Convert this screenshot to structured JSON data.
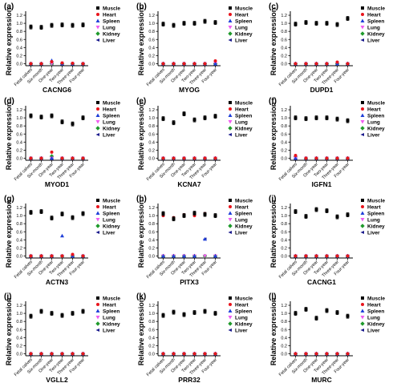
{
  "figure": {
    "panel_labels": [
      "(a)",
      "(b)",
      "(c)",
      "(d)",
      "(e)",
      "(f)",
      "(g)",
      "(h)",
      "(i)",
      "(j)",
      "(k)",
      "(l)"
    ],
    "ylabel": "Relative expression",
    "categories": [
      "Fetal calves",
      "Six-month",
      "One-year",
      "Two-year",
      "Three-year",
      "Four-year"
    ],
    "legend": [
      "Muscle",
      "Heart",
      "Spleen",
      "Lung",
      "Kidney",
      "Liver"
    ],
    "colors": {
      "Muscle": "#000000",
      "Heart": "#e8141c",
      "Spleen": "#1f3fd8",
      "Lung": "#f05cf0",
      "Kidney": "#1f9a2c",
      "Liver": "#1a1a8c"
    }
  },
  "chart_data": [
    {
      "type": "scatter",
      "panel": "(a)",
      "xlabel": "CACNG6",
      "ylabel": "Relative expression",
      "ylim": [
        -0.05,
        1.3
      ],
      "yticks": [
        0.0,
        0.2,
        0.4,
        0.6,
        0.8,
        1.0,
        1.2
      ],
      "categories": [
        "Fetal calves",
        "Six-month",
        "One-year",
        "Two-year",
        "Three-year",
        "Four-year"
      ],
      "series": [
        {
          "name": "Muscle",
          "values": [
            0.91,
            0.9,
            0.95,
            0.96,
            0.95,
            0.96
          ]
        },
        {
          "name": "Heart",
          "values": [
            0.0,
            0.0,
            0.05,
            0.02,
            0.01,
            0.0
          ]
        },
        {
          "name": "Spleen",
          "values": [
            0.0,
            0.0,
            0.08,
            0.0,
            0.0,
            0.0
          ]
        },
        {
          "name": "Lung",
          "values": [
            0.0,
            0.0,
            0.0,
            0.0,
            0.0,
            0.0
          ]
        },
        {
          "name": "Kidney",
          "values": [
            0.0,
            0.0,
            0.0,
            0.0,
            0.0,
            0.0
          ]
        },
        {
          "name": "Liver",
          "values": [
            0.0,
            0.0,
            0.0,
            0.0,
            0.0,
            0.0
          ]
        }
      ]
    },
    {
      "type": "scatter",
      "panel": "(b)",
      "xlabel": "MYOG",
      "ylabel": "Relative expression",
      "ylim": [
        -0.05,
        1.3
      ],
      "yticks": [
        0.0,
        0.2,
        0.4,
        0.6,
        0.8,
        1.0,
        1.2
      ],
      "categories": [
        "Fetal calves",
        "Six-month",
        "One-year",
        "Two-year",
        "Three-year",
        "Four-year"
      ],
      "series": [
        {
          "name": "Muscle",
          "values": [
            0.98,
            0.95,
            1.0,
            1.0,
            1.05,
            1.02
          ]
        },
        {
          "name": "Heart",
          "values": [
            0.0,
            0.0,
            0.0,
            0.0,
            0.0,
            0.07
          ]
        },
        {
          "name": "Spleen",
          "values": [
            0.0,
            0.0,
            0.0,
            0.0,
            0.0,
            0.0
          ]
        },
        {
          "name": "Lung",
          "values": [
            0.0,
            0.0,
            0.0,
            0.0,
            0.0,
            0.0
          ]
        },
        {
          "name": "Kidney",
          "values": [
            0.0,
            0.0,
            0.0,
            0.0,
            0.0,
            0.0
          ]
        },
        {
          "name": "Liver",
          "values": [
            0.0,
            0.0,
            0.0,
            0.0,
            0.0,
            0.0
          ]
        }
      ]
    },
    {
      "type": "scatter",
      "panel": "(c)",
      "xlabel": "DUPD1",
      "ylabel": "Relative expression",
      "ylim": [
        -0.05,
        1.3
      ],
      "yticks": [
        0.0,
        0.2,
        0.4,
        0.6,
        0.8,
        1.0,
        1.2
      ],
      "categories": [
        "Fetal calves",
        "Six-month",
        "One-year",
        "Two-year",
        "Three-year",
        "Four-year"
      ],
      "series": [
        {
          "name": "Muscle",
          "values": [
            0.98,
            1.02,
            1.0,
            1.0,
            0.97,
            1.12
          ]
        },
        {
          "name": "Heart",
          "values": [
            0.0,
            0.0,
            0.0,
            0.0,
            0.04,
            0.0
          ]
        },
        {
          "name": "Spleen",
          "values": [
            0.0,
            0.0,
            0.0,
            0.0,
            0.0,
            0.0
          ]
        },
        {
          "name": "Lung",
          "values": [
            0.0,
            0.0,
            0.0,
            0.0,
            0.0,
            0.0
          ]
        },
        {
          "name": "Kidney",
          "values": [
            0.0,
            0.0,
            0.0,
            0.0,
            0.0,
            0.0
          ]
        },
        {
          "name": "Liver",
          "values": [
            0.0,
            0.0,
            0.0,
            0.0,
            0.0,
            0.0
          ]
        }
      ]
    },
    {
      "type": "scatter",
      "panel": "(d)",
      "xlabel": "MYOD1",
      "ylabel": "Relative expression",
      "ylim": [
        -0.05,
        1.3
      ],
      "yticks": [
        0.0,
        0.2,
        0.4,
        0.6,
        0.8,
        1.0,
        1.2
      ],
      "categories": [
        "Fetal calves",
        "Six-month",
        "One-year",
        "Two-year",
        "Three-year",
        "Four-year"
      ],
      "series": [
        {
          "name": "Muscle",
          "values": [
            1.05,
            1.02,
            1.05,
            0.9,
            0.85,
            1.0
          ]
        },
        {
          "name": "Heart",
          "values": [
            0.0,
            0.0,
            0.15,
            0.0,
            0.0,
            0.0
          ]
        },
        {
          "name": "Spleen",
          "values": [
            0.0,
            0.0,
            0.0,
            0.0,
            0.0,
            0.0
          ]
        },
        {
          "name": "Lung",
          "values": [
            0.0,
            0.0,
            0.0,
            0.0,
            0.0,
            0.0
          ]
        },
        {
          "name": "Kidney",
          "values": [
            0.0,
            0.0,
            0.05,
            0.0,
            0.0,
            0.0
          ]
        },
        {
          "name": "Liver",
          "values": [
            0.0,
            0.0,
            0.0,
            0.0,
            0.0,
            0.0
          ]
        }
      ]
    },
    {
      "type": "scatter",
      "panel": "(e)",
      "xlabel": "KCNA7",
      "ylabel": "Relative expression",
      "ylim": [
        -0.05,
        1.3
      ],
      "yticks": [
        0.0,
        0.2,
        0.4,
        0.6,
        0.8,
        1.0,
        1.2
      ],
      "categories": [
        "Fetal calves",
        "Six-month",
        "One-year",
        "Two-year",
        "Three-year",
        "Four-year"
      ],
      "series": [
        {
          "name": "Muscle",
          "values": [
            0.98,
            0.88,
            1.1,
            0.95,
            1.0,
            1.04
          ]
        },
        {
          "name": "Heart",
          "values": [
            0.0,
            0.0,
            0.0,
            0.0,
            0.0,
            0.0
          ]
        },
        {
          "name": "Spleen",
          "values": [
            0.0,
            0.0,
            0.0,
            0.0,
            0.0,
            0.0
          ]
        },
        {
          "name": "Lung",
          "values": [
            0.0,
            0.0,
            0.0,
            0.0,
            0.0,
            0.0
          ]
        },
        {
          "name": "Kidney",
          "values": [
            0.0,
            0.0,
            0.0,
            0.0,
            0.0,
            0.0
          ]
        },
        {
          "name": "Liver",
          "values": [
            0.0,
            0.0,
            0.0,
            0.0,
            0.0,
            0.0
          ]
        }
      ]
    },
    {
      "type": "scatter",
      "panel": "(f)",
      "xlabel": "IGFN1",
      "ylabel": "Relative expression",
      "ylim": [
        -0.05,
        1.3
      ],
      "yticks": [
        0.0,
        0.2,
        0.4,
        0.6,
        0.8,
        1.0,
        1.2
      ],
      "categories": [
        "Fetal calves",
        "Six-month",
        "One-year",
        "Two-year",
        "Three-year",
        "Four-year"
      ],
      "series": [
        {
          "name": "Muscle",
          "values": [
            1.0,
            0.98,
            1.0,
            1.0,
            0.97,
            0.93
          ]
        },
        {
          "name": "Heart",
          "values": [
            0.07,
            0.0,
            0.0,
            0.0,
            0.0,
            0.0
          ]
        },
        {
          "name": "Spleen",
          "values": [
            0.0,
            0.0,
            0.0,
            0.0,
            0.0,
            0.0
          ]
        },
        {
          "name": "Lung",
          "values": [
            0.0,
            0.0,
            0.0,
            0.0,
            0.0,
            0.0
          ]
        },
        {
          "name": "Kidney",
          "values": [
            0.04,
            0.0,
            0.0,
            0.0,
            0.0,
            0.0
          ]
        },
        {
          "name": "Liver",
          "values": [
            0.0,
            0.0,
            0.0,
            0.0,
            0.0,
            0.0
          ]
        }
      ]
    },
    {
      "type": "scatter",
      "panel": "(g)",
      "xlabel": "ACTN3",
      "ylabel": "Relative expression",
      "ylim": [
        -0.05,
        1.3
      ],
      "yticks": [
        0.0,
        0.2,
        0.4,
        0.6,
        0.8,
        1.0,
        1.2
      ],
      "categories": [
        "Fetal calves",
        "Six-month",
        "One-year",
        "Two-year",
        "Three-year",
        "Four-year"
      ],
      "series": [
        {
          "name": "Muscle",
          "values": [
            1.08,
            1.1,
            0.94,
            1.04,
            0.95,
            1.05
          ]
        },
        {
          "name": "Heart",
          "values": [
            0.0,
            0.0,
            0.0,
            0.0,
            0.04,
            0.0
          ]
        },
        {
          "name": "Spleen",
          "values": [
            0.0,
            0.0,
            0.0,
            0.5,
            0.0,
            0.0
          ]
        },
        {
          "name": "Lung",
          "values": [
            0.0,
            0.0,
            0.0,
            0.0,
            0.0,
            0.0
          ]
        },
        {
          "name": "Kidney",
          "values": [
            0.0,
            0.0,
            0.0,
            0.0,
            0.0,
            0.0
          ]
        },
        {
          "name": "Liver",
          "values": [
            0.0,
            0.0,
            0.0,
            0.0,
            0.0,
            0.0
          ]
        }
      ]
    },
    {
      "type": "scatter",
      "panel": "(h)",
      "xlabel": "PITX3",
      "ylabel": "Relative expression",
      "ylim": [
        -0.05,
        1.3
      ],
      "yticks": [
        0.0,
        0.2,
        0.4,
        0.6,
        0.8,
        1.0,
        1.2
      ],
      "categories": [
        "Fetal calves",
        "Six-month",
        "One-year",
        "Two-year",
        "Three-year",
        "Four-year"
      ],
      "series": [
        {
          "name": "Muscle",
          "values": [
            1.05,
            0.92,
            1.0,
            1.06,
            1.03,
            1.0
          ]
        },
        {
          "name": "Heart",
          "values": [
            1.0,
            0.95,
            1.02,
            1.0,
            1.05,
            1.0
          ]
        },
        {
          "name": "Spleen",
          "values": [
            0.0,
            0.0,
            0.0,
            0.0,
            0.42,
            0.0
          ]
        },
        {
          "name": "Lung",
          "values": [
            0.0,
            0.0,
            0.0,
            0.0,
            0.0,
            0.0
          ]
        },
        {
          "name": "Kidney",
          "values": [
            0.0,
            0.0,
            0.0,
            0.0,
            0.0,
            0.0
          ]
        },
        {
          "name": "Liver",
          "values": [
            0.0,
            0.0,
            0.0,
            0.0,
            0.42,
            0.0
          ]
        }
      ]
    },
    {
      "type": "scatter",
      "panel": "(i)",
      "xlabel": "CACNG1",
      "ylabel": "Relative expression",
      "ylim": [
        -0.05,
        1.3
      ],
      "yticks": [
        0.0,
        0.2,
        0.4,
        0.6,
        0.8,
        1.0,
        1.2
      ],
      "categories": [
        "Fetal calves",
        "Six-month",
        "One-year",
        "Two-year",
        "Three-year",
        "Four-year"
      ],
      "series": [
        {
          "name": "Muscle",
          "values": [
            1.1,
            0.98,
            1.15,
            1.12,
            0.97,
            1.02
          ]
        },
        {
          "name": "Heart",
          "values": [
            0.0,
            0.0,
            0.0,
            0.0,
            0.0,
            0.0
          ]
        },
        {
          "name": "Spleen",
          "values": [
            0.0,
            0.0,
            0.0,
            0.0,
            0.0,
            0.0
          ]
        },
        {
          "name": "Lung",
          "values": [
            0.0,
            0.0,
            0.0,
            0.0,
            0.0,
            0.0
          ]
        },
        {
          "name": "Kidney",
          "values": [
            0.0,
            0.0,
            0.0,
            0.0,
            0.0,
            0.0
          ]
        },
        {
          "name": "Liver",
          "values": [
            0.0,
            0.0,
            0.0,
            0.0,
            0.0,
            0.0
          ]
        }
      ]
    },
    {
      "type": "scatter",
      "panel": "(j)",
      "xlabel": "VGLL2",
      "ylabel": "Relative expression",
      "ylim": [
        -0.05,
        1.3
      ],
      "yticks": [
        0.0,
        0.2,
        0.4,
        0.6,
        0.8,
        1.0,
        1.2
      ],
      "categories": [
        "Fetal calves",
        "Six-month",
        "One-year",
        "Two-year",
        "Three-year",
        "Four-year"
      ],
      "series": [
        {
          "name": "Muscle",
          "values": [
            0.93,
            1.05,
            1.0,
            0.95,
            1.0,
            1.05
          ]
        },
        {
          "name": "Heart",
          "values": [
            0.0,
            0.0,
            0.0,
            0.0,
            0.0,
            0.0
          ]
        },
        {
          "name": "Spleen",
          "values": [
            0.0,
            0.0,
            0.0,
            0.0,
            0.0,
            0.0
          ]
        },
        {
          "name": "Lung",
          "values": [
            0.0,
            0.0,
            0.0,
            0.0,
            0.0,
            0.0
          ]
        },
        {
          "name": "Kidney",
          "values": [
            0.0,
            0.0,
            0.0,
            0.0,
            0.0,
            0.0
          ]
        },
        {
          "name": "Liver",
          "values": [
            0.0,
            0.0,
            0.0,
            0.0,
            0.0,
            0.0
          ]
        }
      ]
    },
    {
      "type": "scatter",
      "panel": "(k)",
      "xlabel": "PRR32",
      "ylabel": "Relative expression",
      "ylim": [
        -0.05,
        1.3
      ],
      "yticks": [
        0.0,
        0.2,
        0.4,
        0.6,
        0.8,
        1.0,
        1.2
      ],
      "categories": [
        "Fetal calves",
        "Six-month",
        "One-year",
        "Two-year",
        "Three-year",
        "Four-year"
      ],
      "series": [
        {
          "name": "Muscle",
          "values": [
            0.95,
            1.03,
            0.97,
            1.02,
            1.05,
            1.0
          ]
        },
        {
          "name": "Heart",
          "values": [
            0.0,
            0.0,
            0.0,
            0.0,
            0.0,
            0.0
          ]
        },
        {
          "name": "Spleen",
          "values": [
            0.0,
            0.0,
            0.0,
            0.0,
            0.0,
            0.0
          ]
        },
        {
          "name": "Lung",
          "values": [
            0.0,
            0.0,
            0.0,
            0.0,
            0.0,
            0.0
          ]
        },
        {
          "name": "Kidney",
          "values": [
            0.0,
            0.0,
            0.0,
            0.0,
            0.0,
            0.0
          ]
        },
        {
          "name": "Liver",
          "values": [
            0.0,
            0.0,
            0.0,
            0.0,
            0.0,
            0.0
          ]
        }
      ]
    },
    {
      "type": "scatter",
      "panel": "(l)",
      "xlabel": "MURC",
      "ylabel": "Relative expression",
      "ylim": [
        -0.05,
        1.3
      ],
      "yticks": [
        0.0,
        0.2,
        0.4,
        0.6,
        0.8,
        1.0,
        1.2
      ],
      "categories": [
        "Fetal calves",
        "Six-month",
        "One-year",
        "Two-year",
        "Three-year",
        "Four-year"
      ],
      "series": [
        {
          "name": "Muscle",
          "values": [
            1.0,
            1.1,
            0.88,
            1.07,
            1.02,
            0.93
          ]
        },
        {
          "name": "Heart",
          "values": [
            0.0,
            0.0,
            0.0,
            0.0,
            0.0,
            0.0
          ]
        },
        {
          "name": "Spleen",
          "values": [
            0.0,
            0.0,
            0.0,
            0.0,
            0.0,
            0.0
          ]
        },
        {
          "name": "Lung",
          "values": [
            0.0,
            0.0,
            0.0,
            0.0,
            0.0,
            0.0
          ]
        },
        {
          "name": "Kidney",
          "values": [
            0.0,
            0.0,
            0.0,
            0.0,
            0.0,
            0.0
          ]
        },
        {
          "name": "Liver",
          "values": [
            0.0,
            0.0,
            0.0,
            0.0,
            0.0,
            0.0
          ]
        }
      ]
    }
  ]
}
